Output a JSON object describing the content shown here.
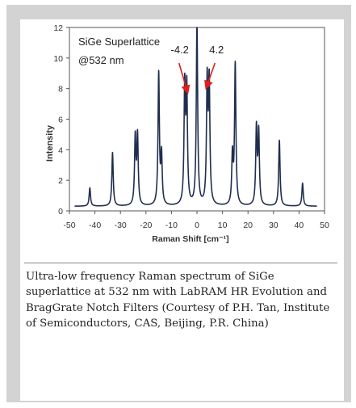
{
  "chart_data": {
    "type": "line",
    "title": "SiGe Superlattice @532 nm",
    "title_lines": [
      "SiGe Superlattice",
      "@532 nm"
    ],
    "xlabel": "Raman Shift [cm⁻¹]",
    "ylabel": "Intensity",
    "xlim": [
      -50,
      50
    ],
    "ylim": [
      0,
      12
    ],
    "xticks": [
      -50,
      -40,
      -30,
      -20,
      -10,
      0,
      10,
      20,
      30,
      40,
      50
    ],
    "yticks": [
      0,
      2,
      4,
      6,
      8,
      10,
      12
    ],
    "grid": false,
    "legend": "none",
    "line_color": "#1f2d4f",
    "annotations": [
      {
        "text": "-4.2",
        "x": -4.2,
        "y": 7.6
      },
      {
        "text": "4.2",
        "x": 4.2,
        "y": 7.9
      }
    ],
    "peaks": [
      {
        "x": -42.0,
        "y": 1.2
      },
      {
        "x": -33.1,
        "y": 3.5
      },
      {
        "x": -24.2,
        "y": 4.4
      },
      {
        "x": -23.3,
        "y": 4.5
      },
      {
        "x": -15.0,
        "y": 8.6
      },
      {
        "x": -13.9,
        "y": 3.2
      },
      {
        "x": -4.8,
        "y": 7.6
      },
      {
        "x": -4.0,
        "y": 7.4
      },
      {
        "x": 0.0,
        "y": 12.0
      },
      {
        "x": 4.0,
        "y": 7.9
      },
      {
        "x": 4.8,
        "y": 7.8
      },
      {
        "x": 13.9,
        "y": 3.2
      },
      {
        "x": 15.0,
        "y": 9.2
      },
      {
        "x": 23.3,
        "y": 5.0
      },
      {
        "x": 24.2,
        "y": 4.7
      },
      {
        "x": 32.3,
        "y": 4.3
      },
      {
        "x": 41.4,
        "y": 1.5
      }
    ],
    "baseline": 0.3
  },
  "caption": "Ultra-low frequency Raman spectrum of SiGe superlattice at 532 nm with LabRAM HR Evolution and BragGrate Notch Filters (Courtesy of P.H. Tan, Institute of Semiconductors, CAS, Beijing, P.R. China)"
}
